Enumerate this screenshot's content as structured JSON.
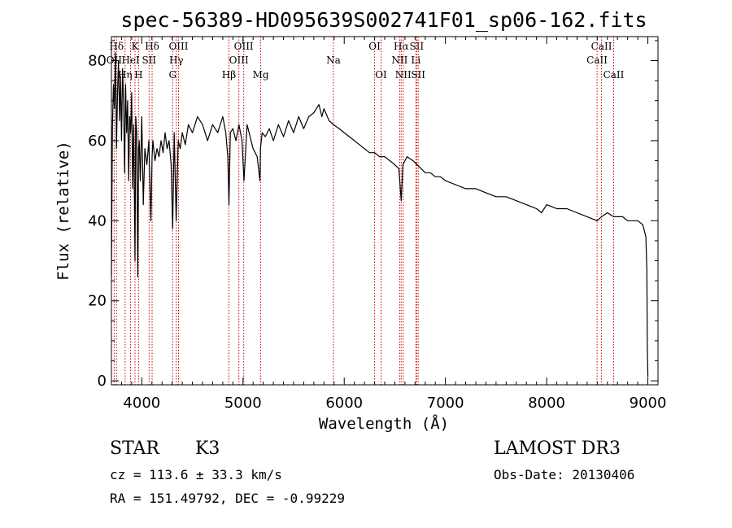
{
  "chart_data": {
    "type": "line",
    "title": "spec-56389-HD095639S002741F01_sp06-162.fits",
    "xlabel": "Wavelength (Å)",
    "ylabel": "Flux (relative)",
    "xlim": [
      3700,
      9100
    ],
    "ylim": [
      -1,
      86
    ],
    "xticks": [
      4000,
      5000,
      6000,
      7000,
      8000,
      9000
    ],
    "yticks": [
      0,
      20,
      40,
      60,
      80
    ],
    "series": [
      {
        "name": "flux",
        "x": [
          3700,
          3710,
          3720,
          3730,
          3740,
          3750,
          3760,
          3770,
          3780,
          3790,
          3800,
          3810,
          3820,
          3830,
          3840,
          3850,
          3860,
          3870,
          3880,
          3890,
          3900,
          3910,
          3920,
          3933,
          3940,
          3950,
          3960,
          3968,
          3975,
          3985,
          4000,
          4015,
          4030,
          4050,
          4070,
          4090,
          4102,
          4110,
          4130,
          4150,
          4170,
          4190,
          4210,
          4230,
          4250,
          4270,
          4290,
          4305,
          4320,
          4340,
          4360,
          4380,
          4400,
          4430,
          4460,
          4500,
          4550,
          4600,
          4650,
          4700,
          4750,
          4800,
          4830,
          4850,
          4861,
          4875,
          4900,
          4930,
          4960,
          4990,
          5010,
          5040,
          5070,
          5100,
          5140,
          5167,
          5172,
          5190,
          5220,
          5260,
          5300,
          5350,
          5400,
          5450,
          5500,
          5550,
          5600,
          5650,
          5700,
          5750,
          5780,
          5800,
          5850,
          5893,
          5950,
          6000,
          6050,
          6100,
          6150,
          6200,
          6250,
          6300,
          6350,
          6400,
          6450,
          6500,
          6540,
          6563,
          6580,
          6620,
          6680,
          6720,
          6760,
          6800,
          6850,
          6900,
          6950,
          7000,
          7100,
          7200,
          7300,
          7400,
          7500,
          7600,
          7700,
          7800,
          7900,
          7950,
          8000,
          8100,
          8200,
          8300,
          8400,
          8498,
          8542,
          8600,
          8662,
          8700,
          8750,
          8800,
          8850,
          8900,
          8950,
          8980,
          8990,
          8995,
          9000
        ],
        "y": [
          26,
          63,
          74,
          68,
          82,
          58,
          72,
          80,
          65,
          76,
          60,
          78,
          70,
          52,
          74,
          62,
          70,
          50,
          66,
          62,
          72,
          48,
          64,
          30,
          66,
          62,
          26,
          58,
          60,
          50,
          66,
          44,
          58,
          54,
          60,
          40,
          56,
          60,
          55,
          58,
          56,
          60,
          57,
          62,
          58,
          60,
          54,
          38,
          62,
          40,
          60,
          58,
          62,
          59,
          64,
          62,
          66,
          64,
          60,
          64,
          62,
          66,
          62,
          56,
          44,
          62,
          63,
          60,
          64,
          60,
          50,
          64,
          61,
          58,
          56,
          50,
          58,
          62,
          61,
          63,
          60,
          64,
          61,
          65,
          62,
          66,
          63,
          66,
          67,
          69,
          66,
          68,
          65,
          64,
          63,
          62,
          61,
          60,
          59,
          58,
          57,
          57,
          56,
          56,
          55,
          54,
          53,
          45,
          54,
          56,
          55,
          54,
          53,
          52,
          52,
          51,
          51,
          50,
          49,
          48,
          48,
          47,
          46,
          46,
          45,
          44,
          43,
          42,
          44,
          43,
          43,
          42,
          41,
          40,
          41,
          42,
          41,
          41,
          41,
          40,
          40,
          40,
          39,
          36,
          28,
          8,
          1
        ]
      }
    ],
    "line_markers": [
      {
        "label": "Hδ",
        "wl": 3750,
        "row": 0
      },
      {
        "label": "K",
        "wl": 3933,
        "row": 0
      },
      {
        "label": "Hδ",
        "wl": 4102,
        "row": 0
      },
      {
        "label": "OIII",
        "wl": 4363,
        "row": 0
      },
      {
        "label": "OIII",
        "wl": 5007,
        "row": 0
      },
      {
        "label": "OI",
        "wl": 6300,
        "row": 0
      },
      {
        "label": "Hα",
        "wl": 6563,
        "row": 0
      },
      {
        "label": "SII",
        "wl": 6716,
        "row": 0
      },
      {
        "label": "CaII",
        "wl": 8542,
        "row": 0
      },
      {
        "label": "OII",
        "wl": 3727,
        "row": 1
      },
      {
        "label": "HeI",
        "wl": 3889,
        "row": 1
      },
      {
        "label": "SII",
        "wl": 4072,
        "row": 1
      },
      {
        "label": "Hγ",
        "wl": 4341,
        "row": 1
      },
      {
        "label": "OIII",
        "wl": 4959,
        "row": 1
      },
      {
        "label": "Na",
        "wl": 5893,
        "row": 1
      },
      {
        "label": "NII",
        "wl": 6548,
        "row": 1
      },
      {
        "label": "Li",
        "wl": 6708,
        "row": 1
      },
      {
        "label": "CaII",
        "wl": 8498,
        "row": 1
      },
      {
        "label": "Hη",
        "wl": 3835,
        "row": 2
      },
      {
        "label": "H",
        "wl": 3968,
        "row": 2
      },
      {
        "label": "G",
        "wl": 4305,
        "row": 2
      },
      {
        "label": "Hβ",
        "wl": 4861,
        "row": 2
      },
      {
        "label": "Mg",
        "wl": 5175,
        "row": 2
      },
      {
        "label": "OI",
        "wl": 6364,
        "row": 2
      },
      {
        "label": "NII",
        "wl": 6583,
        "row": 2
      },
      {
        "label": "SII",
        "wl": 6731,
        "row": 2
      },
      {
        "label": "CaII",
        "wl": 8662,
        "row": 2
      }
    ],
    "colors": {
      "line": "#000000",
      "marker": "#cc0000",
      "axis": "#000000"
    }
  },
  "info": {
    "object_class": "STAR",
    "subclass": "K3",
    "survey": "LAMOST DR3",
    "redshift": "cz = 113.6 ± 33.3 km/s",
    "obs_date": "Obs-Date: 20130406",
    "coords": "RA = 151.49792, DEC =  -0.99229"
  }
}
